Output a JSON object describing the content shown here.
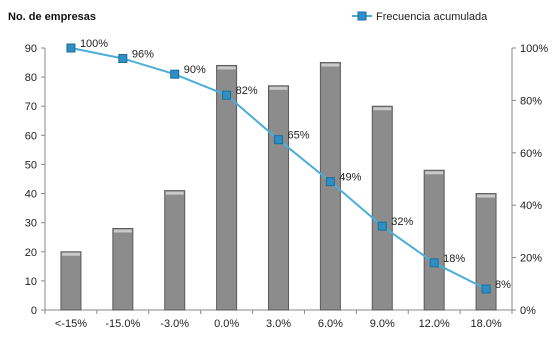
{
  "chart_data": {
    "type": "bar",
    "ylabel": "No. de empresas",
    "categories": [
      "<-15%",
      "-15.0%",
      "-3.0%",
      "0.0%",
      "3.0%",
      "6.0%",
      "9.0%",
      "12.0%",
      "18.0%"
    ],
    "series": [
      {
        "values": [
          20,
          28,
          41,
          84,
          77,
          85,
          70,
          48,
          40
        ]
      },
      {
        "name": "Frecuencia acumulada",
        "type": "line",
        "axis": "right",
        "values": [
          100,
          96,
          90,
          82,
          65,
          49,
          32,
          18,
          8
        ],
        "labels": [
          "100%",
          "96%",
          "90%",
          "82%",
          "65%",
          "49%",
          "32%",
          "18%",
          "8%"
        ]
      }
    ],
    "ylim": [
      0,
      90
    ],
    "yticks": [
      "0",
      "10",
      "20",
      "30",
      "40",
      "50",
      "60",
      "70",
      "80",
      "90"
    ],
    "y2lim": [
      0,
      100
    ],
    "y2ticks": [
      "0%",
      "20%",
      "40%",
      "60%",
      "80%",
      "100%"
    ],
    "legend_position": "top-right",
    "grid": false,
    "colors": {
      "bar": "#8c8c8c",
      "bar_edge": "#5a5a5a",
      "line": "#4aaed9",
      "marker": "#2f8fc4"
    }
  }
}
